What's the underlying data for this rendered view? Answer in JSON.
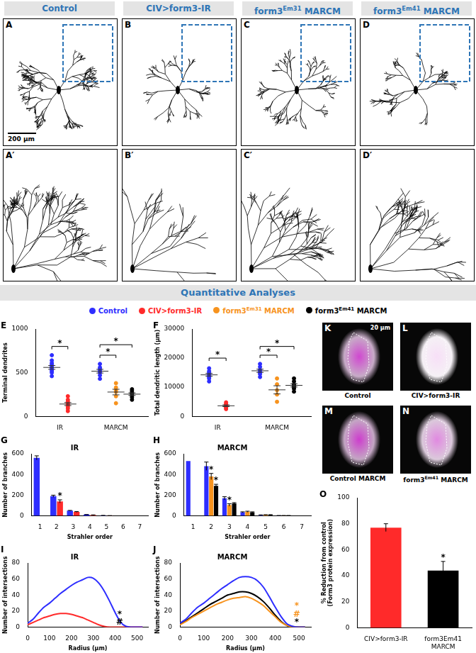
{
  "header": {
    "columns": [
      "Control",
      "CIV>form3-IR",
      "form3Em31 MARCM",
      "form3Em41 MARCM"
    ],
    "panels": [
      "A",
      "B",
      "C",
      "D"
    ],
    "zoom_panels": [
      "A′",
      "B′",
      "C′",
      "D′"
    ],
    "scale_bar": "200 µm"
  },
  "section_title": "Quantitative Analyses",
  "legend_items": [
    {
      "name": "Control",
      "color": "#2e2eff"
    },
    {
      "name": "CIV>form3-IR",
      "color": "#ff2a2a"
    },
    {
      "name": "form3Em31 MARCM",
      "color": "#f7931e"
    },
    {
      "name": "form3Em41 MARCM",
      "color": "#000000"
    }
  ],
  "micrographs": {
    "panels": [
      {
        "panel": "K",
        "caption": "Control"
      },
      {
        "panel": "L",
        "caption": "CIV>form3-IR"
      },
      {
        "panel": "M",
        "caption": "Control MARCM"
      },
      {
        "panel": "N",
        "caption": "form3Em41 MARCM"
      }
    ],
    "scale_bar": "20 µm"
  },
  "chart_data": [
    {
      "panel": "E",
      "type": "scatter",
      "y_label": "Terminal dendrites",
      "grid": false,
      "xlim": [
        0,
        7
      ],
      "xticks": [
        {
          "value": 1.5,
          "label": "IR"
        },
        {
          "value": 5,
          "label": "MARCM"
        }
      ],
      "ylim": [
        0,
        1000
      ],
      "yticks": [
        0,
        500,
        1000
      ],
      "series": [
        {
          "name": "Control",
          "color": "#2e2eff",
          "x": 1,
          "values": [
            460,
            500,
            520,
            540,
            555,
            570,
            590,
            610,
            640,
            700
          ],
          "mean": 560,
          "error": 22
        },
        {
          "name": "CIV>form3-IR",
          "color": "#ff2a2a",
          "x": 2,
          "values": [
            60,
            90,
            110,
            130,
            140,
            150,
            170,
            190,
            230
          ],
          "mean": 141,
          "error": 17
        },
        {
          "name": "Control",
          "color": "#2e2eff",
          "x": 4,
          "values": [
            430,
            470,
            500,
            520,
            540,
            560,
            600
          ],
          "mean": 517,
          "error": 21
        },
        {
          "name": "form3Em31 MARCM",
          "color": "#f7931e",
          "x": 5,
          "values": [
            150,
            230,
            280,
            300,
            330,
            380
          ],
          "mean": 278,
          "error": 32
        },
        {
          "name": "form3Em41 MARCM",
          "color": "#000000",
          "x": 6,
          "values": [
            190,
            220,
            240,
            260,
            270,
            290,
            310
          ],
          "mean": 254,
          "error": 15
        }
      ],
      "annotations": [
        {
          "text": "*",
          "bracket": [
            1,
            2
          ],
          "y": 800
        },
        {
          "text": "*",
          "bracket": [
            4,
            5
          ],
          "y": 700
        },
        {
          "text": "*",
          "bracket": [
            4,
            6
          ],
          "y": 820
        }
      ]
    },
    {
      "panel": "F",
      "type": "scatter",
      "y_label": "Total dendritic length (µm)",
      "grid": false,
      "xlim": [
        0,
        7
      ],
      "xticks": [
        {
          "value": 1.5,
          "label": "IR"
        },
        {
          "value": 5,
          "label": "MARCM"
        }
      ],
      "ylim": [
        0,
        30000
      ],
      "yticks": [
        0,
        10000,
        20000,
        30000
      ],
      "series": [
        {
          "name": "Control",
          "color": "#2e2eff",
          "x": 1,
          "values": [
            12000,
            13000,
            13500,
            14000,
            14500,
            15000,
            15500,
            16500
          ],
          "mean": 14250,
          "error": 500
        },
        {
          "name": "CIV>form3-IR",
          "color": "#ff2a2a",
          "x": 2,
          "values": [
            2500,
            3000,
            3300,
            3600,
            4000,
            4200,
            4800
          ],
          "mean": 3629,
          "error": 290
        },
        {
          "name": "Control",
          "color": "#2e2eff",
          "x": 4,
          "values": [
            13500,
            14500,
            15000,
            15500,
            16000,
            17000,
            18000
          ],
          "mean": 15643,
          "error": 560
        },
        {
          "name": "form3Em31 MARCM",
          "color": "#f7931e",
          "x": 5,
          "values": [
            5000,
            7500,
            9000,
            11000,
            13000
          ],
          "mean": 9100,
          "error": 1400
        },
        {
          "name": "form3Em41 MARCM",
          "color": "#000000",
          "x": 6,
          "values": [
            8500,
            9500,
            10000,
            10500,
            11000,
            12000,
            13000
          ],
          "mean": 10643,
          "error": 560
        }
      ],
      "annotations": [
        {
          "text": "*",
          "bracket": [
            1,
            2
          ],
          "y": 20000
        },
        {
          "text": "*",
          "bracket": [
            4,
            5
          ],
          "y": 21000
        },
        {
          "text": "*",
          "bracket": [
            4,
            6
          ],
          "y": 24000
        }
      ]
    },
    {
      "panel": "G",
      "type": "bar",
      "title": "IR",
      "x_label": "Strahler order",
      "y_label": "Number of branches",
      "grid": false,
      "categories": [
        "1",
        "2",
        "3",
        "4",
        "5",
        "6",
        "7"
      ],
      "ylim": [
        0,
        600
      ],
      "yticks": [
        0,
        200,
        400,
        600
      ],
      "series": [
        {
          "name": "Control",
          "color": "#2e2eff",
          "values": [
            560,
            190,
            50,
            12,
            4,
            1,
            0
          ],
          "error": [
            20,
            10,
            3,
            2,
            1,
            0,
            0
          ]
        },
        {
          "name": "CIV>form3-IR",
          "color": "#ff2a2a",
          "values": [
            null,
            140,
            38,
            8,
            2,
            0,
            0
          ],
          "error": [
            null,
            15,
            4,
            2,
            1,
            0,
            0
          ]
        }
      ],
      "annotations": [
        {
          "text": "*",
          "category": "2",
          "series": "CIV>form3-IR"
        }
      ]
    },
    {
      "panel": "H",
      "type": "bar",
      "title": "MARCM",
      "x_label": "Strahler order",
      "y_label": "Number of branches",
      "grid": false,
      "categories": [
        "1",
        "2",
        "3",
        "4",
        "5",
        "6",
        "7"
      ],
      "ylim": [
        0,
        600
      ],
      "yticks": [
        0,
        200,
        400,
        600
      ],
      "series": [
        {
          "name": "Control",
          "color": "#2e2eff",
          "values": [
            530,
            480,
            170,
            35,
            8,
            3,
            1
          ],
          "error": [
            0,
            40,
            15,
            4,
            2,
            1,
            0
          ]
        },
        {
          "name": "form3Em31 MARCM",
          "color": "#f7931e",
          "values": [
            null,
            380,
            105,
            40,
            10,
            3,
            1
          ],
          "error": [
            null,
            30,
            12,
            5,
            2,
            1,
            0
          ]
        },
        {
          "name": "form3Em41 MARCM",
          "color": "#000000",
          "values": [
            null,
            290,
            120,
            35,
            10,
            3,
            1
          ],
          "error": [
            null,
            15,
            8,
            4,
            2,
            1,
            0
          ]
        }
      ],
      "annotations": [
        {
          "text": "*",
          "category": "2",
          "series": "form3Em31 MARCM"
        },
        {
          "text": "*",
          "category": "2",
          "series": "form3Em41 MARCM"
        },
        {
          "text": "*",
          "category": "3",
          "series": "form3Em31 MARCM"
        }
      ]
    },
    {
      "panel": "I",
      "type": "line",
      "title": "IR",
      "x_label": "Radius (µm)",
      "y_label": "Number of intersections",
      "grid": false,
      "x": [
        0,
        25,
        50,
        75,
        100,
        125,
        150,
        175,
        200,
        225,
        250,
        275,
        300,
        325,
        350,
        375,
        400,
        425,
        450,
        475,
        500,
        525
      ],
      "xlim": [
        0,
        550
      ],
      "xticks": [
        0,
        100,
        200,
        300,
        400,
        500
      ],
      "ylim": [
        0,
        80
      ],
      "yticks": [
        0,
        20,
        40,
        60,
        80
      ],
      "series": [
        {
          "name": "Control",
          "color": "#2e2eff",
          "values": [
            5,
            10,
            18,
            25,
            30,
            36,
            42,
            47,
            52,
            56,
            59,
            62,
            61,
            55,
            45,
            32,
            18,
            6,
            1,
            0,
            0,
            0
          ]
        },
        {
          "name": "CIV>form3-IR",
          "color": "#ff2a2a",
          "values": [
            3,
            6,
            9,
            12,
            14,
            16,
            17,
            17,
            16,
            14,
            12,
            9,
            6,
            3,
            1,
            0,
            0,
            0,
            0,
            0,
            0,
            0
          ]
        }
      ],
      "annotations": [
        {
          "text": "*",
          "x": 420,
          "y": 16,
          "color": "#000000"
        },
        {
          "text": "#",
          "x": 420,
          "y": 6,
          "color": "#000000"
        }
      ]
    },
    {
      "panel": "J",
      "type": "line",
      "title": "MARCM",
      "x_label": "Radius (µm)",
      "y_label": "Number of intersections",
      "grid": false,
      "x": [
        0,
        25,
        50,
        75,
        100,
        125,
        150,
        175,
        200,
        225,
        250,
        275,
        300,
        325,
        350,
        375,
        400,
        425,
        450,
        475,
        500,
        525
      ],
      "xlim": [
        0,
        550
      ],
      "xticks": [
        0,
        100,
        200,
        300,
        400,
        500
      ],
      "ylim": [
        0,
        80
      ],
      "yticks": [
        0,
        20,
        40,
        60,
        80
      ],
      "series": [
        {
          "name": "Control",
          "color": "#2e2eff",
          "values": [
            5,
            10,
            18,
            25,
            30,
            36,
            42,
            48,
            53,
            58,
            62,
            63,
            62,
            58,
            50,
            38,
            25,
            13,
            4,
            1,
            0,
            0
          ]
        },
        {
          "name": "form3Em31 MARCM",
          "color": "#f7931e",
          "values": [
            3,
            7,
            12,
            16,
            20,
            24,
            28,
            31,
            34,
            36,
            37,
            38,
            36,
            32,
            27,
            20,
            13,
            6,
            2,
            0,
            0,
            0
          ]
        },
        {
          "name": "form3Em41 MARCM",
          "color": "#000000",
          "values": [
            4,
            8,
            13,
            18,
            23,
            28,
            32,
            36,
            40,
            42,
            44,
            44,
            42,
            38,
            32,
            24,
            15,
            7,
            2,
            0,
            0,
            0
          ]
        }
      ],
      "annotations": [
        {
          "text": "*",
          "x": 490,
          "y": 26,
          "color": "#f7931e"
        },
        {
          "text": "#",
          "x": 490,
          "y": 16,
          "color": "#f7931e"
        },
        {
          "text": "*",
          "x": 490,
          "y": 6,
          "color": "#000000"
        }
      ]
    },
    {
      "panel": "O",
      "type": "bar",
      "y_label": [
        "% Reduction from control",
        "(Form3 protein expression)"
      ],
      "grid": false,
      "categories": [
        "CIV>form3-IR",
        "form3Em41 MARCM"
      ],
      "values": [
        77,
        44
      ],
      "error": [
        3,
        7
      ],
      "colors": [
        "#ff2a2a",
        "#000000"
      ],
      "ylim": [
        0,
        100
      ],
      "yticks": [
        0,
        20,
        40,
        60,
        80,
        100
      ],
      "annotations": [
        {
          "text": "*",
          "category": "form3Em41 MARCM"
        }
      ]
    }
  ]
}
